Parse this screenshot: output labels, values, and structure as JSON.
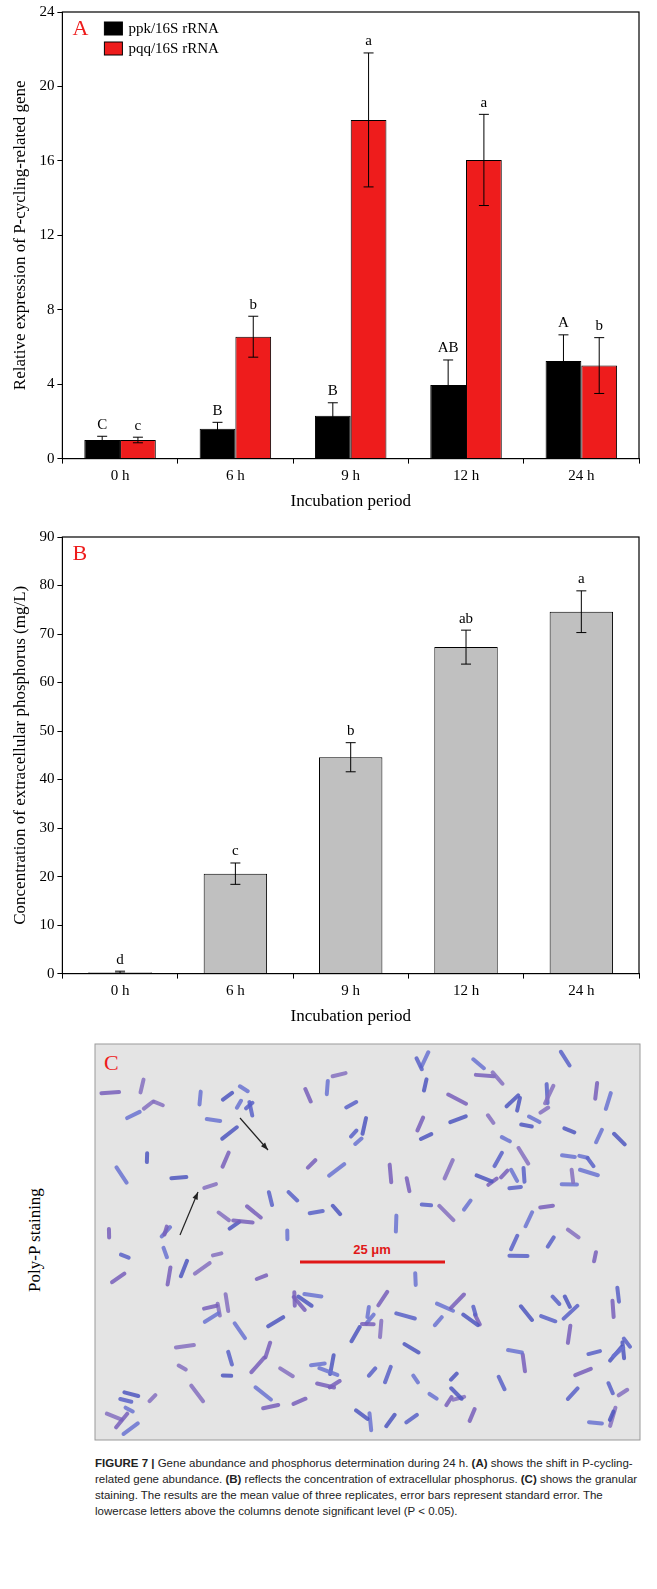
{
  "chart_data": [
    {
      "type": "bar",
      "panel_label": "A",
      "x_label": "Incubation period",
      "y_label": "Relative expression of P-cycling-related gene",
      "categories": [
        "0 h",
        "6 h",
        "9 h",
        "12 h",
        "24 h"
      ],
      "series": [
        {
          "name": "ppk/16S rRNA",
          "color": "#000000",
          "values": [
            1.0,
            1.6,
            2.3,
            3.95,
            5.25
          ],
          "error": [
            0.2,
            0.35,
            0.7,
            1.35,
            1.4
          ],
          "letters": [
            "C",
            "B",
            "B",
            "AB",
            "A"
          ]
        },
        {
          "name": "pqq/16S rRNA",
          "color": "#ee1c1c",
          "values": [
            1.0,
            6.55,
            18.2,
            16.05,
            5.0
          ],
          "error": [
            0.15,
            1.1,
            3.6,
            2.45,
            1.5
          ],
          "letters": [
            "c",
            "b",
            "a",
            "a",
            "b"
          ]
        }
      ],
      "ylim": [
        0,
        24
      ],
      "yticks": [
        0,
        4,
        8,
        12,
        16,
        20,
        24
      ],
      "grid": false,
      "legend": "upper left"
    },
    {
      "type": "bar",
      "panel_label": "B",
      "x_label": "Incubation period",
      "y_label": "Concentration of extracellular phosphorus (mg/L)",
      "categories": [
        "0 h",
        "6 h",
        "9 h",
        "12 h",
        "24 h"
      ],
      "series": [
        {
          "name": "Concentration of extracellular phosphorus",
          "color": "#c0c0c0",
          "values": [
            0.3,
            20.6,
            44.6,
            67.3,
            74.6
          ],
          "error": [
            0.2,
            2.2,
            3.0,
            3.5,
            4.3
          ],
          "letters": [
            "d",
            "c",
            "b",
            "ab",
            "a"
          ]
        }
      ],
      "ylim": [
        0,
        90
      ],
      "yticks": [
        0,
        10,
        20,
        30,
        40,
        50,
        60,
        70,
        80,
        90
      ],
      "grid": false
    }
  ],
  "panel_c": {
    "label": "C",
    "side_label": "Poly-P staining",
    "scale_bar": "25 μm"
  },
  "caption": {
    "label": "FIGURE 7 |",
    "text": "Gene abundance and phosphorus determination during 24 h. (A) shows the shift in P-cycling-related gene abundance. (B) reflects the concentration of extracellular phosphorus. (C) shows the granular staining. The results are the mean value of three replicates, error bars represent standard error. The lowercase letters above the columns denote significant level (P < 0.05)."
  }
}
